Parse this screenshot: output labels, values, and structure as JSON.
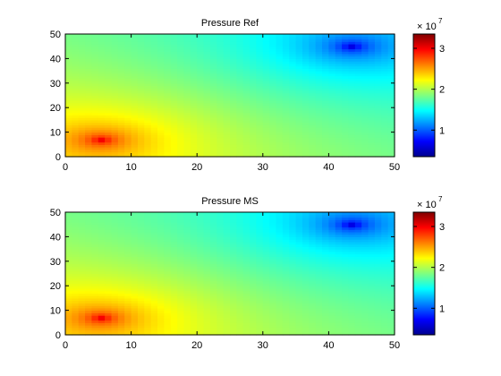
{
  "chart_data": [
    {
      "type": "heatmap",
      "title": "Pressure Ref",
      "xlim": [
        0,
        50
      ],
      "ylim": [
        0,
        50
      ],
      "xticks": [
        0,
        10,
        20,
        30,
        40,
        50
      ],
      "yticks": [
        0,
        10,
        20,
        30,
        40,
        50
      ],
      "grid": [
        50,
        50
      ],
      "colormap": "jet",
      "field": {
        "high_source": [
          5.5,
          7
        ],
        "low_sink": [
          43.5,
          45
        ],
        "value_at_high": 33000000.0,
        "value_at_low": 3500000.0
      },
      "colorbar": {
        "range": [
          3500000.0,
          33500000.0
        ],
        "ticks": [
          1,
          2,
          3
        ],
        "multiplier": "× 10",
        "exponent": "7"
      }
    },
    {
      "type": "heatmap",
      "title": "Pressure MS",
      "xlim": [
        0,
        50
      ],
      "ylim": [
        0,
        50
      ],
      "xticks": [
        0,
        10,
        20,
        30,
        40,
        50
      ],
      "yticks": [
        0,
        10,
        20,
        30,
        40,
        50
      ],
      "grid": [
        50,
        50
      ],
      "colormap": "jet",
      "field": {
        "high_source": [
          5.5,
          7
        ],
        "low_sink": [
          43.5,
          45
        ],
        "value_at_high": 33000000.0,
        "value_at_low": 3500000.0
      },
      "colorbar": {
        "range": [
          3500000.0,
          33500000.0
        ],
        "ticks": [
          1,
          2,
          3
        ],
        "multiplier": "× 10",
        "exponent": "7"
      }
    }
  ]
}
